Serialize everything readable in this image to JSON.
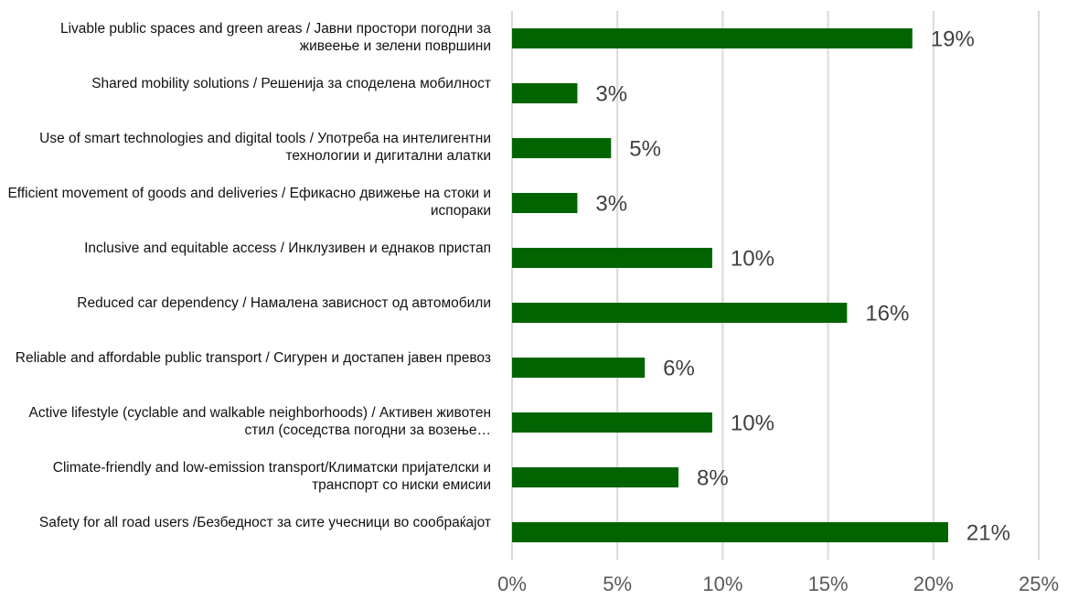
{
  "chart_data": {
    "type": "bar",
    "orientation": "horizontal",
    "categories": [
      "Livable public spaces and green areas / Јавни простори погодни за живеење и зелени површини",
      "Shared mobility solutions / Решенија за споделена мобилност",
      "Use of smart technologies and digital tools / Употреба на интелигентни технологии и дигитални алатки",
      "Efficient movement of goods and deliveries / Ефикасно движење на стоки и испораки",
      "Inclusive and equitable access / Инклузивен и еднаков пристап",
      "Reduced car dependency / Намалена зависност од автомобили",
      "Reliable and affordable public transport / Сигурен и достапен јавен превоз",
      "Active lifestyle (cyclable and walkable neighborhoods) / Активен животен стил (соседства погодни за возење…",
      "Climate-friendly and low-emission transport/Климатски пријателски и транспорт со ниски емисии",
      "Safety for all road users /Безбедност за сите учесници во сообраќајот"
    ],
    "values": [
      19,
      3.1,
      4.7,
      3.1,
      9.5,
      15.9,
      6.3,
      9.5,
      7.9,
      20.7
    ],
    "value_labels": [
      "19%",
      "3%",
      "5%",
      "3%",
      "10%",
      "16%",
      "6%",
      "10%",
      "8%",
      "21%"
    ],
    "color": "#006400",
    "xlim": [
      0,
      25
    ],
    "xticks": [
      {
        "value": 0,
        "label": "0%"
      },
      {
        "value": 5,
        "label": "5%"
      },
      {
        "value": 10,
        "label": "10%"
      },
      {
        "value": 15,
        "label": "15%"
      },
      {
        "value": 20,
        "label": "20%"
      },
      {
        "value": 25,
        "label": "25%"
      }
    ],
    "grid": true
  }
}
